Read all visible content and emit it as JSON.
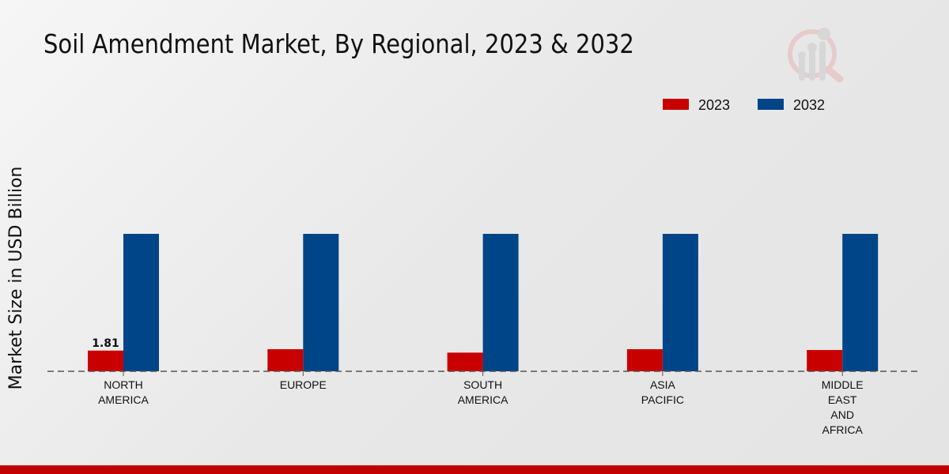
{
  "title": "Soil Amendment Market, By Regional, 2023 & 2032",
  "chart_data": {
    "type": "bar",
    "title": "Soil Amendment Market, By Regional, 2023 & 2032",
    "xlabel": "",
    "ylabel": "Market Size in USD Billion",
    "categories": [
      "NORTH\nAMERICA",
      "EUROPE",
      "SOUTH\nAMERICA",
      "ASIA\nPACIFIC",
      "MIDDLE\nEAST\nAND\nAFRICA"
    ],
    "series": [
      {
        "name": "2023",
        "color": "#c80000",
        "values": [
          1.81,
          1.93,
          1.63,
          1.93,
          1.86
        ]
      },
      {
        "name": "2032",
        "color": "#004587",
        "values": [
          12.0,
          12.0,
          12.0,
          12.0,
          12.0
        ]
      }
    ],
    "data_labels": [
      {
        "series": "2023",
        "category_index": 0,
        "text": "1.81"
      }
    ],
    "ylim": [
      0,
      14
    ],
    "grid": false,
    "legend_position": "top-right"
  }
}
